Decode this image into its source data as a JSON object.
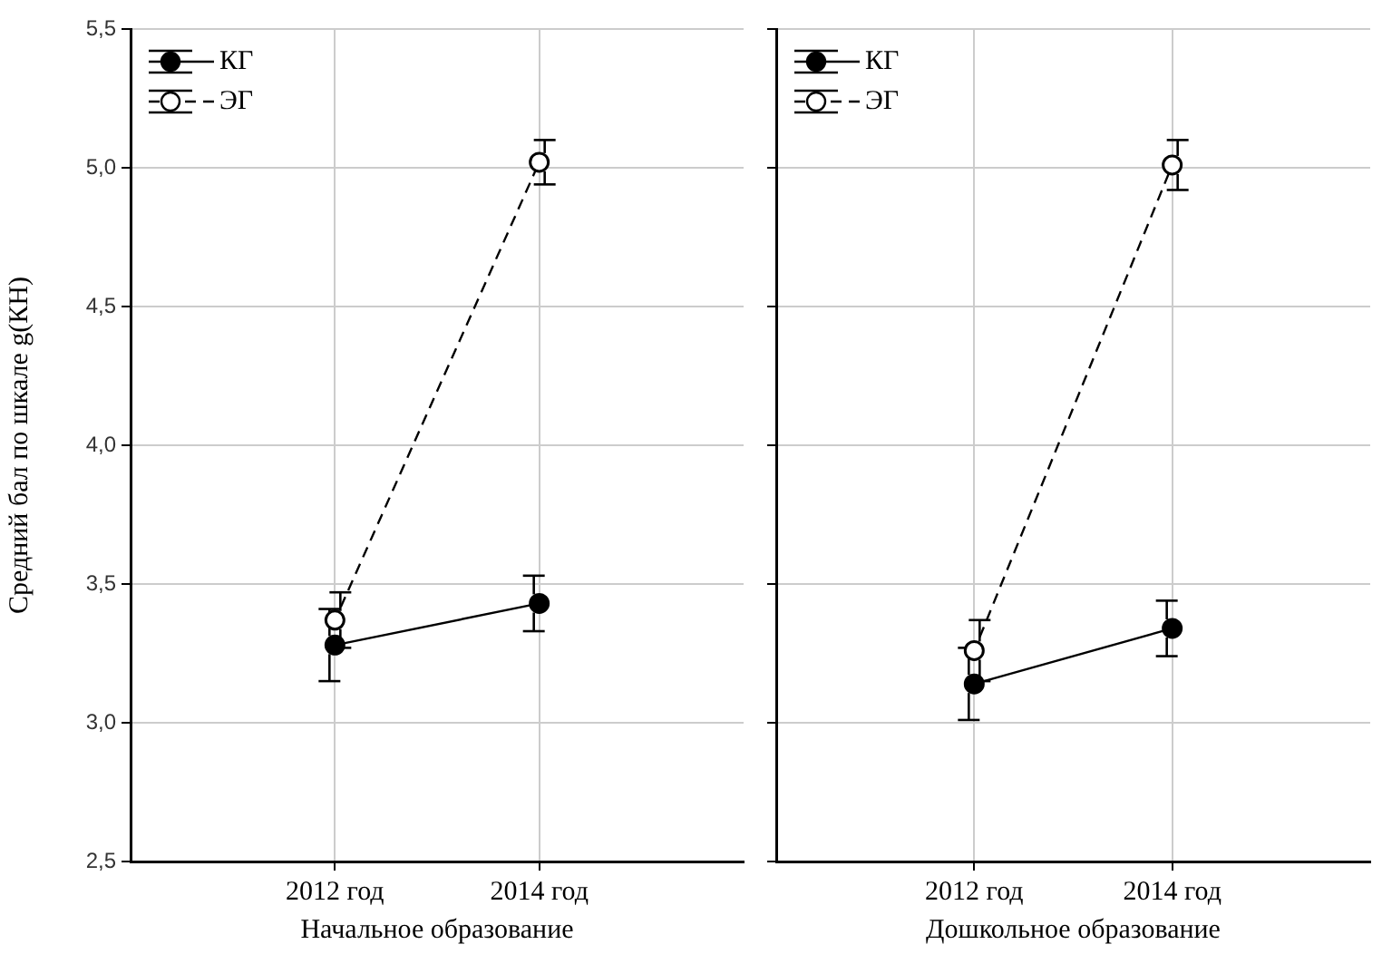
{
  "chart_data": [
    {
      "type": "line",
      "categories": [
        "2012 год",
        "2014 год"
      ],
      "xlabel": "Начальное образование",
      "ylabel": "Средний бал по шкале g(КН)",
      "ylim": [
        2.5,
        5.5
      ],
      "yticks": [
        {
          "value": 2.5,
          "label": "2,5"
        },
        {
          "value": 3.0,
          "label": "3,0"
        },
        {
          "value": 3.5,
          "label": "3,5"
        },
        {
          "value": 4.0,
          "label": "4,0"
        },
        {
          "value": 4.5,
          "label": "4,5"
        },
        {
          "value": 5.0,
          "label": "5,0"
        },
        {
          "value": 5.5,
          "label": "5,5"
        }
      ],
      "grid": true,
      "legend": "top left",
      "marker": "circle",
      "series": [
        {
          "name": "КГ",
          "color": "#000000",
          "values": [
            3.28,
            3.43
          ],
          "errors": [
            0.13,
            0.1
          ],
          "line_style": "solid"
        },
        {
          "name": "ЭГ",
          "color": "#000000",
          "values": [
            3.37,
            5.02
          ],
          "errors": [
            0.1,
            0.08
          ],
          "line_style": "dashed"
        }
      ]
    },
    {
      "type": "line",
      "categories": [
        "2012 год",
        "2014 год"
      ],
      "xlabel": "Дошкольное образование",
      "ylim": [
        2.5,
        5.5
      ],
      "yticks": [
        {
          "value": 2.5,
          "label": null
        },
        {
          "value": 3.0,
          "label": null
        },
        {
          "value": 3.5,
          "label": null
        },
        {
          "value": 4.0,
          "label": null
        },
        {
          "value": 4.5,
          "label": null
        },
        {
          "value": 5.0,
          "label": null
        },
        {
          "value": 5.5,
          "label": null
        }
      ],
      "grid": true,
      "legend": "top left",
      "marker": "circle",
      "tick_labels": "x",
      "series": [
        {
          "name": "КГ",
          "color": "#000000",
          "values": [
            3.14,
            3.34
          ],
          "errors": [
            0.13,
            0.1
          ],
          "line_style": "solid"
        },
        {
          "name": "ЭГ",
          "color": "#000000",
          "values": [
            3.26,
            5.01
          ],
          "errors": [
            0.11,
            0.09
          ],
          "line_style": "dashed"
        }
      ]
    }
  ]
}
